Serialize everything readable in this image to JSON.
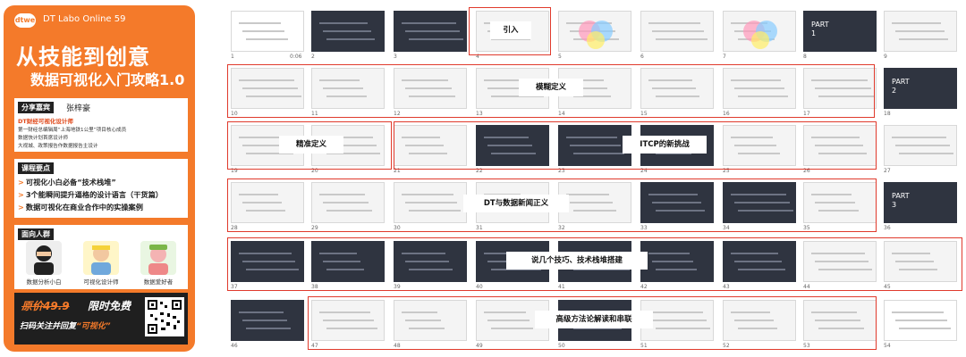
{
  "card": {
    "logo": "dtwe",
    "brand": "DT Labo Online 59",
    "title_line1": "从技能到创意",
    "title_line2": "数据可视化入门攻略1.0",
    "guest": {
      "tag": "分享嘉宾",
      "name": "张梓豪",
      "role": "DT财经可视化设计师",
      "lines": [
        "第一财经总编辑周“上海地铁1公里”项目核心成员",
        "数据快计划首席设计师",
        "大视城、政策报告作数据报告主设计"
      ]
    },
    "points": {
      "tag": "课程要点",
      "items": [
        "可视化小白必备“技术栈堆”",
        "3个能瞬间提升逼格的设计语言（干货篇）",
        "数据可视化在商业合作中的实操案例"
      ]
    },
    "audience": {
      "tag": "面向人群",
      "items": [
        "数据分析小白",
        "可视化设计师",
        "数据爱好者"
      ]
    },
    "promo": {
      "price_old": "原价49.9",
      "price_free": "限时免费",
      "scan_prefix": "扫码关注并回复",
      "scan_keyword": "“可视化”"
    }
  },
  "slides": {
    "numbers": [
      "1",
      "2",
      "3",
      "4",
      "5",
      "6",
      "7",
      "8",
      "9",
      "10",
      "11",
      "12",
      "13",
      "14",
      "15",
      "16",
      "17",
      "18",
      "19",
      "20",
      "21",
      "22",
      "23",
      "24",
      "25",
      "26",
      "27",
      "28",
      "29",
      "30",
      "31",
      "32",
      "33",
      "34",
      "35",
      "36",
      "37",
      "38",
      "39",
      "40",
      "41",
      "42",
      "43",
      "44",
      "45",
      "46",
      "47",
      "48",
      "49",
      "50",
      "51",
      "52",
      "53",
      "54"
    ],
    "duration": "0:06",
    "thumb_texts": {
      "s8": "PART\n1",
      "s18": "PART\n2",
      "s36": "PART\n3"
    }
  },
  "sections": [
    {
      "label": "引入"
    },
    {
      "label": "模糊定义"
    },
    {
      "label": "精准定义"
    },
    {
      "label": "ITCP的新挑战"
    },
    {
      "label": "DT与数据新闻正义"
    },
    {
      "label": "说几个技巧、技术栈堆搭建"
    },
    {
      "label": "高级方法论解读和串联"
    }
  ],
  "colors": {
    "accent": "#f47a2a",
    "highlight_box": "#e03a2c"
  }
}
